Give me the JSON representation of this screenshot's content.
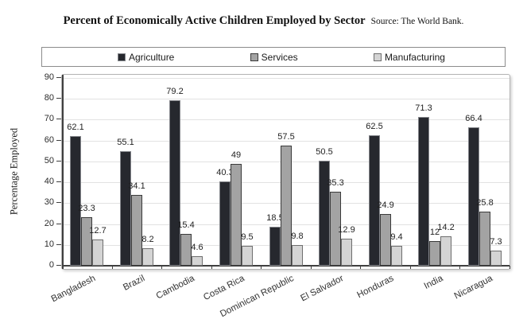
{
  "title": "Percent of Economically Active Children Employed by Sector",
  "source": "Source: The World Bank.",
  "chart_data": {
    "type": "bar",
    "title": "Percent of Economically Active Children Employed by Sector",
    "subtitle": "Source: The World Bank.",
    "xlabel": "",
    "ylabel": "Percentage Employed",
    "ylim": [
      0,
      90
    ],
    "ytick_step": 10,
    "grid": true,
    "legend_position": "top",
    "categories": [
      "Bangladesh",
      "Brazil",
      "Cambodia",
      "Costa Rica",
      "Dominican Republic",
      "El Salvador",
      "Honduras",
      "India",
      "Nicaragua"
    ],
    "series": [
      {
        "name": "Agriculture",
        "fill": "#26282e",
        "border": "#85878c",
        "values": [
          62.1,
          55.1,
          79.2,
          40.3,
          18.5,
          50.5,
          62.5,
          71.3,
          66.4
        ]
      },
      {
        "name": "Services",
        "fill": "#a3a3a3",
        "border": "#3a3a3a",
        "values": [
          23.3,
          34.1,
          15.4,
          49,
          57.5,
          35.3,
          24.9,
          12,
          25.8
        ]
      },
      {
        "name": "Manufacturing",
        "fill": "#d4d4d4",
        "border": "#6e6e6e",
        "values": [
          12.7,
          8.2,
          4.6,
          9.5,
          9.8,
          12.9,
          9.4,
          14.2,
          7.3
        ]
      }
    ]
  }
}
